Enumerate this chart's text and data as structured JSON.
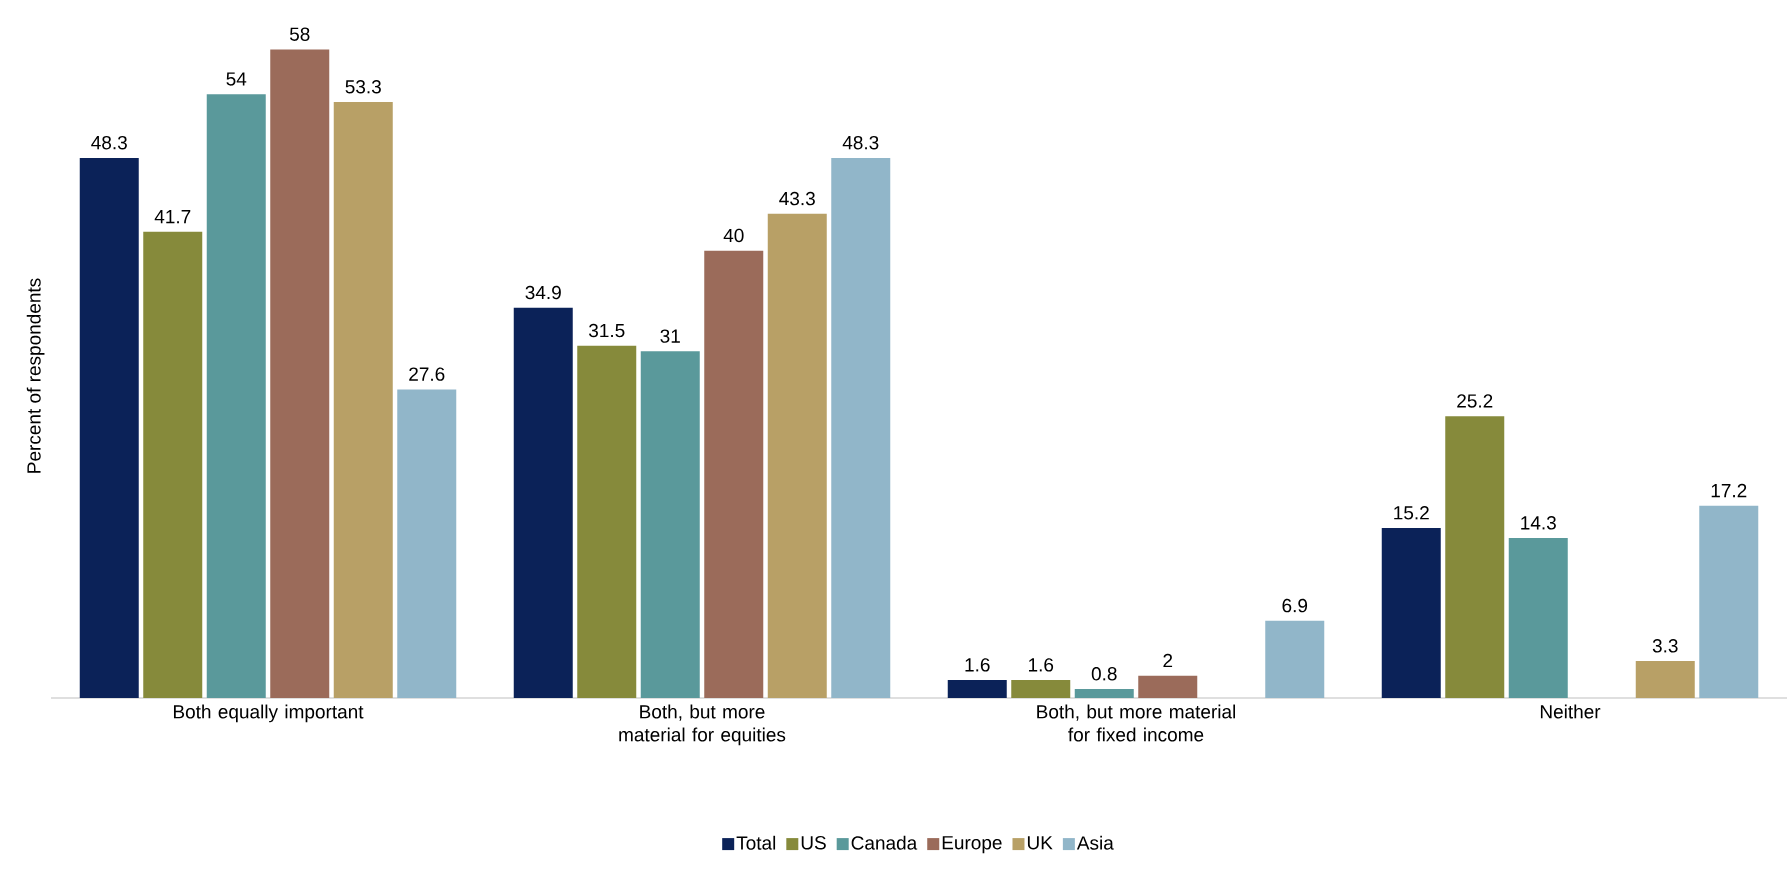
{
  "chart_data": {
    "type": "bar",
    "ylabel": "Percent of respondents",
    "categories": [
      "Both equally important",
      "Both, but more material for equities",
      "Both, but more material for fixed income",
      "Neither"
    ],
    "series": [
      {
        "name": "Total",
        "color": "#0b2258",
        "values": [
          48.3,
          34.9,
          1.6,
          15.2
        ]
      },
      {
        "name": "US",
        "color": "#868a3b",
        "values": [
          41.7,
          31.5,
          1.6,
          25.2
        ]
      },
      {
        "name": "Canada",
        "color": "#5a999b",
        "values": [
          54,
          31,
          0.8,
          14.3
        ]
      },
      {
        "name": "Europe",
        "color": "#9b6b5a",
        "values": [
          58,
          40,
          2,
          null
        ]
      },
      {
        "name": "UK",
        "color": "#b8a066",
        "values": [
          53.3,
          43.3,
          null,
          3.3
        ]
      },
      {
        "name": "Asia",
        "color": "#91b6c9",
        "values": [
          27.6,
          48.3,
          6.9,
          17.2
        ]
      }
    ],
    "data_labels": true,
    "legend": "bottom"
  }
}
